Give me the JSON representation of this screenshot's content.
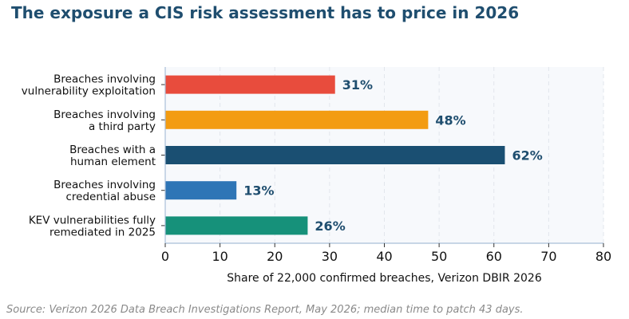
{
  "title": "The exposure a CIS risk assessment has to price in 2026",
  "source_note": "Source: Verizon 2026 Data Breach Investigations Report, May 2026; median time to patch 43 days.",
  "colors": {
    "title": "#1f4e6f",
    "value_label": "#1f4e6f",
    "plot_background": "#f7f9fc",
    "axis": "#a9bfd8",
    "grid": "#e2e6ec",
    "source": "#8a8a8a"
  },
  "chart_data": {
    "type": "bar",
    "orientation": "horizontal",
    "categories": [
      [
        "Breaches involving",
        "vulnerability exploitation"
      ],
      [
        "Breaches involving",
        "a third party"
      ],
      [
        "Breaches with a",
        "human element"
      ],
      [
        "Breaches involving",
        "credential abuse"
      ],
      [
        "KEV vulnerabilities fully",
        "remediated in 2025"
      ]
    ],
    "values": [
      31,
      48,
      62,
      13,
      26
    ],
    "value_labels": [
      "31%",
      "48%",
      "62%",
      "13%",
      "26%"
    ],
    "bar_colors": [
      "#e84c3d",
      "#f39c12",
      "#1a4f72",
      "#2e75b6",
      "#16917a"
    ],
    "xlabel": "Share of 22,000 confirmed breaches, Verizon DBIR 2026",
    "ylabel": "",
    "xlim": [
      0,
      80
    ],
    "xticks": [
      0,
      10,
      20,
      30,
      40,
      50,
      60,
      70,
      80
    ],
    "grid": "vertical dashed"
  }
}
